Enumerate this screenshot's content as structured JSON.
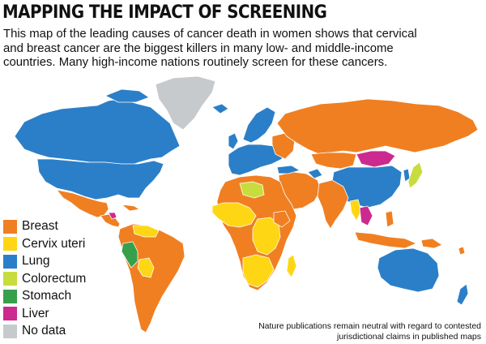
{
  "header": {
    "title": "MAPPING THE IMPACT OF SCREENING",
    "subtitle_lines": [
      "This map of the leading causes of cancer death in women shows that cervical",
      "and breast cancer are the biggest killers in many low- and middle-income",
      "countries. Many high-income nations routinely screen for these cancers."
    ]
  },
  "legend": {
    "items": [
      {
        "label": "Breast",
        "color": "#f07f22"
      },
      {
        "label": "Cervix uteri",
        "color": "#fed614"
      },
      {
        "label": "Lung",
        "color": "#2b7fc8"
      },
      {
        "label": "Colorectum",
        "color": "#c9dc3e"
      },
      {
        "label": "Stomach",
        "color": "#37a04a"
      },
      {
        "label": "Liver",
        "color": "#cc2a8f"
      },
      {
        "label": "No data",
        "color": "#c6cacd"
      }
    ]
  },
  "disclaimer": {
    "lines": [
      "Nature publications remain neutral with regard to contested",
      "jurisdictional claims in published maps"
    ]
  },
  "map": {
    "border_color": "#ffffff",
    "ocean_color": "#ffffff"
  }
}
